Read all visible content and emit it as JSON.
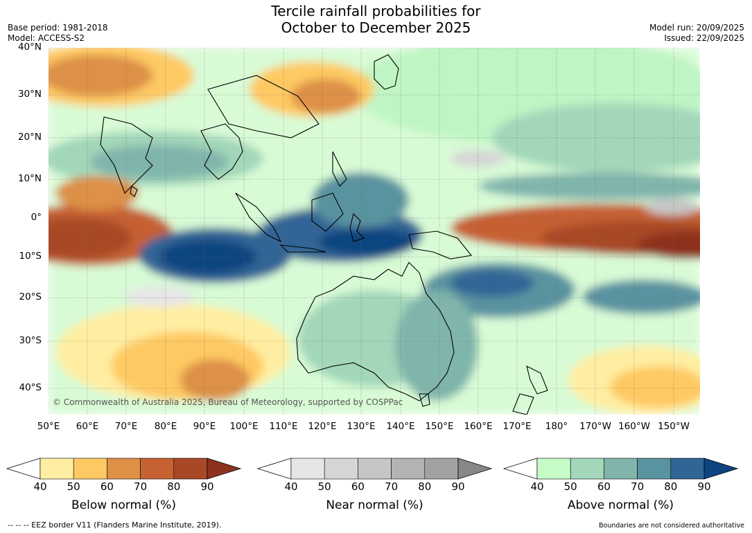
{
  "title": {
    "line1": "Tercile rainfall probabilities for",
    "line2": "October to December 2025"
  },
  "meta": {
    "base_period": "Base period: 1981-2018",
    "model": "Model: ACCESS-S2",
    "model_run": "Model run: 20/09/2025",
    "issued": "Issued: 22/09/2025"
  },
  "latitude_labels": [
    "40°N",
    "30°N",
    "20°N",
    "10°N",
    "0°",
    "10°S",
    "20°S",
    "30°S",
    "40°S"
  ],
  "longitude_labels": [
    "50°E",
    "60°E",
    "70°E",
    "80°E",
    "90°E",
    "100°E",
    "110°E",
    "120°E",
    "130°E",
    "140°E",
    "150°E",
    "160°E",
    "170°E",
    "180°",
    "170°W",
    "160°W",
    "150°W"
  ],
  "copyright": "© Commonwealth of Australia 2025, Bureau of Meteorology, supported by COSPPac",
  "colorbars": [
    {
      "label": "Below normal (%)",
      "ticks": [
        "40",
        "50",
        "60",
        "70",
        "80",
        "90"
      ],
      "colors": [
        "#ffeea1",
        "#fec962",
        "#dd9046",
        "#c66132",
        "#a84826",
        "#8c331d"
      ]
    },
    {
      "label": "Near normal (%)",
      "ticks": [
        "40",
        "50",
        "60",
        "70",
        "80",
        "90"
      ],
      "colors": [
        "#e6e6e6",
        "#d6d6d6",
        "#c6c6c6",
        "#b3b3b3",
        "#a2a2a2",
        "#878787"
      ]
    },
    {
      "label": "Above normal (%)",
      "ticks": [
        "40",
        "50",
        "60",
        "70",
        "80",
        "90"
      ],
      "colors": [
        "#c6fcc6",
        "#a3d7b9",
        "#80b5ac",
        "#5a93a0",
        "#306595",
        "#0e4480"
      ]
    }
  ],
  "footer": {
    "eez": "-- -- -- EEZ border V11 (Flanders Marine Institute, 2019).",
    "disclaimer": "Boundaries are not considered authoritative"
  }
}
